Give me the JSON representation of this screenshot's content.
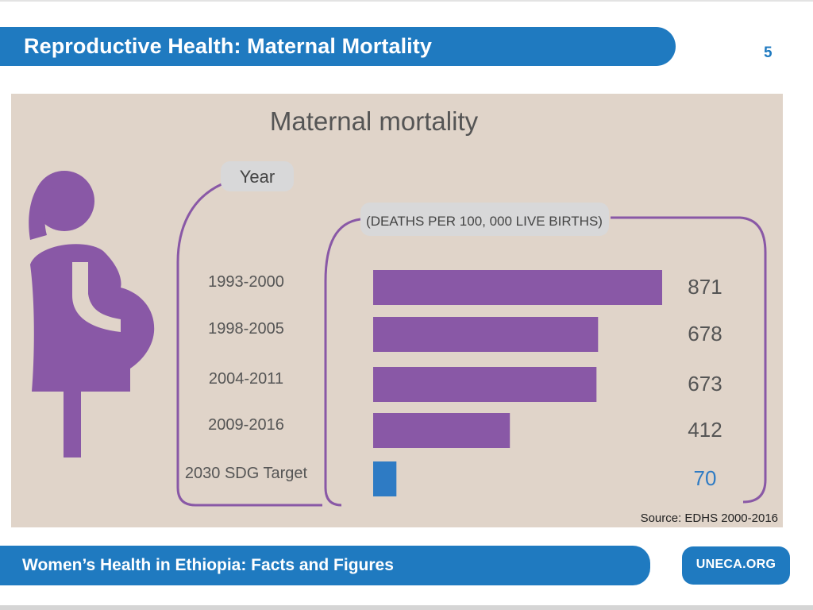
{
  "header": {
    "title": "Reproductive Health: Maternal Mortality",
    "slide_number": "5"
  },
  "chart_data": {
    "type": "bar",
    "orientation": "horizontal",
    "title": "Maternal mortality",
    "category_header": "Year",
    "value_header": "(DEATHS PER 100, 000 LIVE BIRTHS)",
    "categories": [
      "1993-2000",
      "1998-2005",
      "2004-2011",
      "2009-2016",
      "2030 SDG Target"
    ],
    "values": [
      871,
      678,
      673,
      412,
      70
    ],
    "value_labels": [
      "871",
      "678",
      "673",
      "412",
      "70"
    ],
    "bar_colors": [
      "#8958a6",
      "#8958a6",
      "#8958a6",
      "#8958a6",
      "#2e7bc4"
    ],
    "label_colors": [
      "#555555",
      "#555555",
      "#555555",
      "#555555",
      "#2e7bc4"
    ],
    "xlim": [
      0,
      871
    ],
    "icon": "pregnant-woman-icon",
    "accent_color": "#8958a6",
    "source": "Source: EDHS 2000-2016"
  },
  "footer": {
    "text": "Women’s Health in Ethiopia: Facts and Figures",
    "link_label": "UNECA.ORG"
  }
}
